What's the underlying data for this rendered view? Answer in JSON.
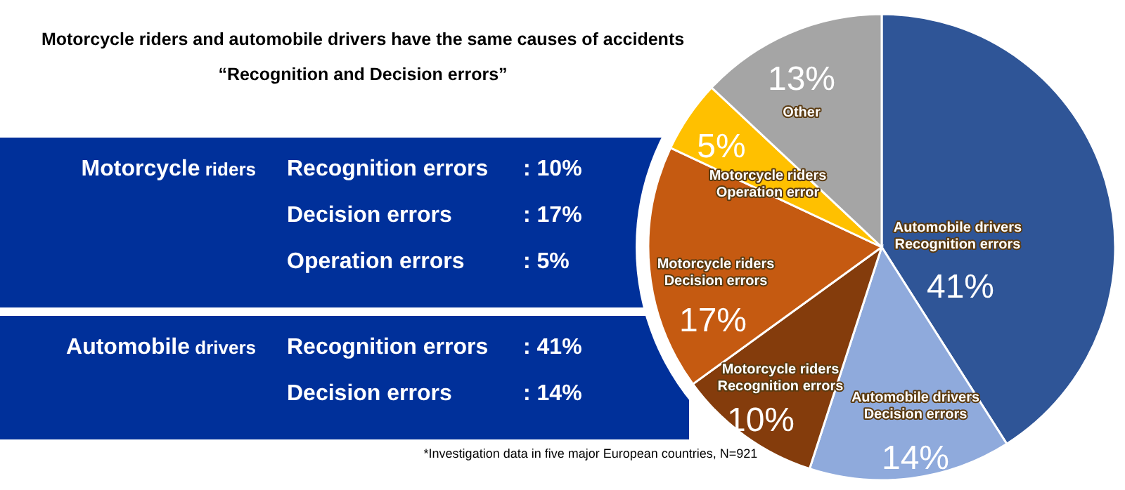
{
  "chart_data": [
    {
      "type": "pie",
      "title": "Motorcycle riders and automobile drivers have the same causes of accidents",
      "subtitle": "“Recognition and Decision errors”",
      "categories": [
        "Automobile drivers\nRecognition errors",
        "Automobile drivers\nDecision errors",
        "Motorcycle riders\nRecognition errors",
        "Motorcycle riders\nDecision errors",
        "Motorcycle riders\nOperation error",
        "Other"
      ],
      "values": [
        41,
        14,
        10,
        17,
        5,
        13
      ],
      "colors": [
        "#2f5597",
        "#8faadc",
        "#843c0c",
        "#c55a11",
        "#ffc000",
        "#a5a5a5"
      ],
      "value_labels": [
        "41%",
        "14%",
        "10%",
        "17%",
        "5%",
        "13%"
      ],
      "annotations": [
        "*Investigation data in five major European countries, N=921"
      ]
    },
    {
      "type": "other",
      "annotations": [
        "Motorcycle riders",
        "Recognition errors",
        ": 10%",
        "Decision errors",
        ": 17%",
        "Operation errors",
        ": 5%",
        "Automobile drivers",
        "Recognition errors",
        ": 41%",
        "Decision errors",
        ": 14%"
      ]
    }
  ]
}
